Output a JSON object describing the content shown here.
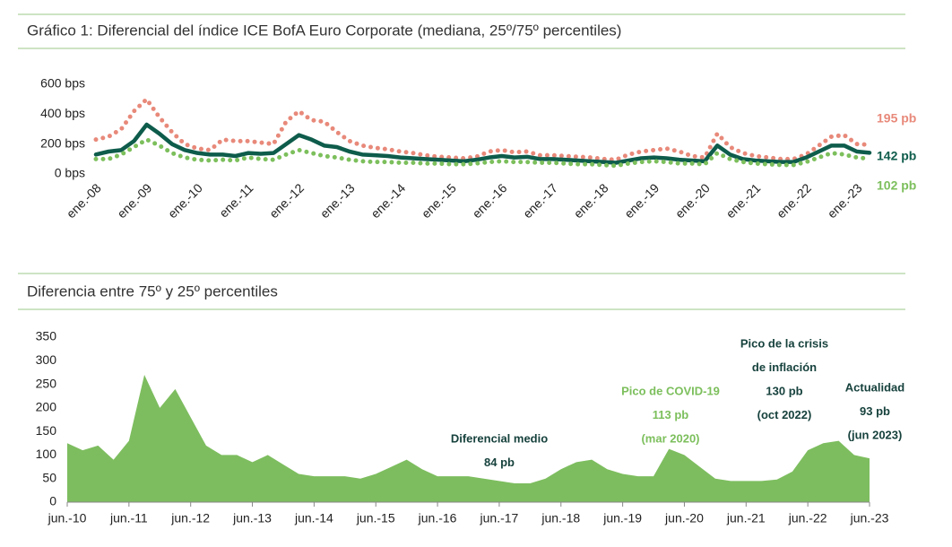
{
  "chart_data": [
    {
      "type": "line",
      "title": "Gráfico 1: Diferencial del índice ICE BofA Euro Corporate (mediana, 25º/75º percentiles)",
      "categories": [
        "ene.-08",
        null,
        null,
        null,
        "ene.-09",
        null,
        null,
        null,
        "ene.-10",
        null,
        null,
        null,
        "ene.-11",
        null,
        null,
        null,
        "ene.-12",
        null,
        null,
        null,
        "ene.-13",
        null,
        null,
        null,
        "ene.-14",
        null,
        null,
        null,
        "ene.-15",
        null,
        null,
        null,
        "ene.-16",
        null,
        null,
        null,
        "ene.-17",
        null,
        null,
        null,
        "ene.-18",
        null,
        null,
        null,
        "ene.-19",
        null,
        null,
        null,
        "ene.-20",
        null,
        null,
        null,
        "ene.-21",
        null,
        null,
        null,
        "ene.-22",
        null,
        null,
        null,
        "ene.-23",
        null
      ],
      "ylim": [
        0,
        600
      ],
      "yticks": [
        {
          "value": 0,
          "label": "0 bps"
        },
        {
          "value": 200,
          "label": "200 bps"
        },
        {
          "value": 400,
          "label": "400 bps"
        },
        {
          "value": 600,
          "label": "600 bps"
        }
      ],
      "series": [
        {
          "color": "#e8897a",
          "dash": "dotted",
          "end_label": "195 pb",
          "values": [
            230,
            250,
            300,
            420,
            500,
            380,
            280,
            200,
            170,
            160,
            230,
            220,
            220,
            210,
            200,
            350,
            420,
            360,
            350,
            280,
            220,
            190,
            175,
            165,
            150,
            140,
            125,
            115,
            110,
            105,
            115,
            150,
            160,
            145,
            150,
            125,
            125,
            120,
            115,
            110,
            100,
            95,
            130,
            150,
            160,
            170,
            150,
            120,
            110,
            270,
            180,
            140,
            120,
            110,
            100,
            100,
            130,
            190,
            250,
            260,
            200,
            195
          ]
        },
        {
          "color": "#0e5c4b",
          "dash": "solid",
          "end_label": "142 pb",
          "values": [
            130,
            150,
            160,
            220,
            330,
            270,
            200,
            160,
            140,
            130,
            130,
            120,
            140,
            135,
            140,
            200,
            260,
            230,
            190,
            180,
            150,
            130,
            125,
            120,
            110,
            105,
            100,
            95,
            90,
            85,
            95,
            110,
            120,
            110,
            115,
            100,
            100,
            95,
            90,
            85,
            80,
            75,
            90,
            105,
            110,
            105,
            95,
            90,
            85,
            190,
            130,
            100,
            90,
            85,
            80,
            80,
            110,
            150,
            190,
            190,
            150,
            142
          ]
        },
        {
          "color": "#7cbf5c",
          "dash": "dotted",
          "end_label": "102 pb",
          "values": [
            100,
            100,
            130,
            180,
            230,
            190,
            140,
            110,
            95,
            90,
            95,
            90,
            110,
            100,
            95,
            130,
            160,
            140,
            120,
            110,
            95,
            85,
            80,
            80,
            75,
            75,
            70,
            70,
            65,
            65,
            70,
            80,
            85,
            80,
            80,
            75,
            75,
            70,
            65,
            65,
            60,
            55,
            70,
            80,
            85,
            80,
            70,
            70,
            65,
            140,
            100,
            80,
            70,
            65,
            60,
            60,
            80,
            110,
            140,
            130,
            110,
            102
          ]
        }
      ]
    },
    {
      "type": "area",
      "title": "Diferencia entre 75º y 25º percentiles",
      "categories": [
        "jun.-10",
        null,
        null,
        null,
        "jun.-11",
        null,
        null,
        null,
        "jun.-12",
        null,
        null,
        null,
        "jun.-13",
        null,
        null,
        null,
        "jun.-14",
        null,
        null,
        null,
        "jun.-15",
        null,
        null,
        null,
        "jun.-16",
        null,
        null,
        null,
        "jun.-17",
        null,
        null,
        null,
        "jun.-18",
        null,
        null,
        null,
        "jun.-19",
        null,
        null,
        null,
        "jun.-20",
        null,
        null,
        null,
        "jun.-21",
        null,
        null,
        null,
        "jun.-22",
        null,
        null,
        null,
        "jun.-23"
      ],
      "ylim": [
        0,
        350
      ],
      "yticks": [
        0,
        50,
        100,
        150,
        200,
        250,
        300,
        350
      ],
      "color": "#7dbd5f",
      "values": [
        125,
        110,
        120,
        90,
        130,
        270,
        200,
        240,
        180,
        120,
        100,
        100,
        85,
        100,
        80,
        60,
        55,
        55,
        55,
        50,
        60,
        75,
        90,
        70,
        55,
        55,
        55,
        50,
        45,
        40,
        40,
        50,
        70,
        85,
        90,
        70,
        60,
        55,
        55,
        113,
        100,
        75,
        50,
        45,
        45,
        45,
        48,
        65,
        110,
        125,
        130,
        100,
        93
      ],
      "annotations": [
        {
          "color": "#17423d",
          "lines": [
            "Diferencial medio",
            "84 pb"
          ]
        },
        {
          "color": "#7cbf5c",
          "lines": [
            "Pico de COVID-19",
            "113 pb",
            "(mar 2020)"
          ]
        },
        {
          "color": "#17423d",
          "lines": [
            "Pico de la crisis",
            "de inflación",
            "130 pb",
            "(oct 2022)"
          ]
        },
        {
          "color": "#17423d",
          "lines": [
            "Actualidad",
            "93 pb",
            "(jun 2023)"
          ]
        }
      ]
    }
  ]
}
